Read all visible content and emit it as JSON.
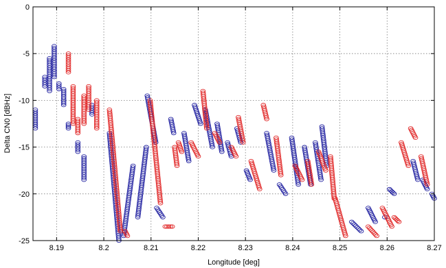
{
  "chart_data": {
    "type": "scatter",
    "title": "",
    "xlabel": "Longitude [deg]",
    "ylabel": "Delta CN0 [dBHz]",
    "xlim": [
      8.185,
      8.27
    ],
    "ylim": [
      -25,
      0
    ],
    "xticks": [
      8.19,
      8.2,
      8.21,
      8.22,
      8.23,
      8.24,
      8.25,
      8.26,
      8.27
    ],
    "xtick_labels": [
      "8.19",
      "8.2",
      "8.21",
      "8.22",
      "8.23",
      "8.24",
      "8.25",
      "8.26",
      "8.27"
    ],
    "yticks": [
      0,
      -5,
      -10,
      -15,
      -20,
      -25
    ],
    "ytick_labels": [
      "0",
      "-5",
      "-10",
      "-15",
      "-20",
      "-25"
    ],
    "grid": true,
    "marker": "circle-open",
    "series": [
      {
        "color": "#1f1f9f",
        "segments": [
          [
            8.1855,
            -11.0,
            8.1855,
            -13.0
          ],
          [
            8.1875,
            -7.5,
            8.1875,
            -8.5
          ],
          [
            8.1885,
            -5.5,
            8.1885,
            -9.0
          ],
          [
            8.1895,
            -4.2,
            8.1895,
            -7.5
          ],
          [
            8.1905,
            -8.2,
            8.1905,
            -8.8
          ],
          [
            8.1915,
            -8.8,
            8.1915,
            -10.5
          ],
          [
            8.1925,
            -12.5,
            8.1925,
            -13.0
          ],
          [
            8.1945,
            -14.5,
            8.1945,
            -15.5
          ],
          [
            8.1958,
            -16.0,
            8.1958,
            -18.5
          ],
          [
            8.1975,
            -10.5,
            8.1975,
            -11.5
          ],
          [
            8.2012,
            -13.5,
            8.2032,
            -25.0
          ],
          [
            8.2042,
            -24.5,
            8.2062,
            -17.0
          ],
          [
            8.2072,
            -22.5,
            8.209,
            -15.0
          ],
          [
            8.2092,
            -9.5,
            8.211,
            -14.5
          ],
          [
            8.2112,
            -21.5,
            8.2125,
            -22.5
          ],
          [
            8.2142,
            -12.0,
            8.2148,
            -13.5
          ],
          [
            8.217,
            -13.5,
            8.218,
            -16.5
          ],
          [
            8.2192,
            -10.5,
            8.2205,
            -12.5
          ],
          [
            8.2215,
            -11.0,
            8.223,
            -15.0
          ],
          [
            8.224,
            -12.5,
            8.225,
            -15.5
          ],
          [
            8.2262,
            -14.5,
            8.227,
            -16.0
          ],
          [
            8.2282,
            -13.0,
            8.229,
            -14.5
          ],
          [
            8.2302,
            -17.5,
            8.231,
            -18.5
          ],
          [
            8.2345,
            -13.5,
            8.236,
            -17.5
          ],
          [
            8.2372,
            -19.0,
            8.2385,
            -20.0
          ],
          [
            8.2398,
            -14.0,
            8.2412,
            -19.0
          ],
          [
            8.2425,
            -15.0,
            8.2438,
            -19.0
          ],
          [
            8.2448,
            -14.5,
            8.246,
            -18.5
          ],
          [
            8.2462,
            -12.8,
            8.2472,
            -17.0
          ],
          [
            8.2525,
            -23.0,
            8.2545,
            -24.0
          ],
          [
            8.256,
            -21.5,
            8.2575,
            -23.0
          ],
          [
            8.2595,
            -22.5,
            8.26,
            -22.5
          ],
          [
            8.2605,
            -19.5,
            8.2615,
            -20.0
          ],
          [
            8.2655,
            -16.5,
            8.2665,
            -18.5
          ],
          [
            8.2675,
            -18.5,
            8.2685,
            -19.5
          ],
          [
            8.2695,
            -20.0,
            8.27,
            -20.5
          ]
        ]
      },
      {
        "color": "#e02424",
        "segments": [
          [
            8.1925,
            -5.0,
            8.1925,
            -7.0
          ],
          [
            8.1935,
            -8.5,
            8.1935,
            -12.5
          ],
          [
            8.1945,
            -12.0,
            8.1945,
            -13.5
          ],
          [
            8.1958,
            -9.5,
            8.1958,
            -12.5
          ],
          [
            8.1968,
            -8.5,
            8.1968,
            -11.0
          ],
          [
            8.1985,
            -10.0,
            8.1985,
            -13.0
          ],
          [
            8.2012,
            -11.0,
            8.2035,
            -24.0
          ],
          [
            8.2045,
            -24.0,
            8.205,
            -24.5
          ],
          [
            8.2098,
            -10.0,
            8.212,
            -21.0
          ],
          [
            8.213,
            -23.5,
            8.2145,
            -23.5
          ],
          [
            8.215,
            -15.0,
            8.2155,
            -17.0
          ],
          [
            8.2158,
            -14.5,
            8.2165,
            -15.5
          ],
          [
            8.2185,
            -14.5,
            8.22,
            -16.0
          ],
          [
            8.221,
            -9.0,
            8.2218,
            -13.0
          ],
          [
            8.2235,
            -13.5,
            8.2245,
            -14.5
          ],
          [
            8.227,
            -15.0,
            8.228,
            -16.0
          ],
          [
            8.2285,
            -11.8,
            8.2295,
            -14.5
          ],
          [
            8.2312,
            -16.5,
            8.233,
            -19.5
          ],
          [
            8.2338,
            -10.5,
            8.2345,
            -12.0
          ],
          [
            8.2365,
            -14.0,
            8.2375,
            -18.0
          ],
          [
            8.2405,
            -17.0,
            8.242,
            -18.5
          ],
          [
            8.2432,
            -16.5,
            8.244,
            -19.0
          ],
          [
            8.2455,
            -15.5,
            8.247,
            -17.5
          ],
          [
            8.248,
            -16.0,
            8.2488,
            -20.5
          ],
          [
            8.249,
            -20.5,
            8.2512,
            -24.5
          ],
          [
            8.256,
            -23.5,
            8.2578,
            -24.5
          ],
          [
            8.259,
            -21.5,
            8.261,
            -23.5
          ],
          [
            8.2615,
            -22.5,
            8.2625,
            -23.0
          ],
          [
            8.263,
            -14.5,
            8.2645,
            -17.0
          ],
          [
            8.265,
            -13.0,
            8.266,
            -14.0
          ],
          [
            8.2672,
            -16.0,
            8.2685,
            -19.0
          ]
        ]
      }
    ]
  }
}
